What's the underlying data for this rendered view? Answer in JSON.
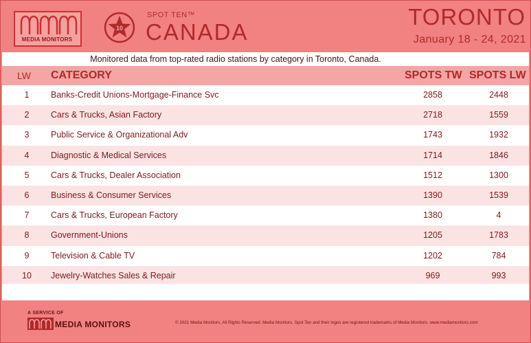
{
  "brand": {
    "logo_caption": "MEDIA MONITORS",
    "badge_number": "10",
    "product_line": "SPOT TEN™",
    "region": "CANADA"
  },
  "market": {
    "city": "TORONTO",
    "date_range": "January 18 - 24, 2021"
  },
  "subtitle": "Monitored data from top-rated radio stations by category in Toronto, Canada.",
  "table": {
    "headers": {
      "lw": "LW",
      "category": "CATEGORY",
      "spots_tw": "SPOTS TW",
      "spots_lw": "SPOTS LW"
    },
    "rows": [
      {
        "lw": "1",
        "category": "Banks-Credit Unions-Mortgage-Finance Svc",
        "spots_tw": "2858",
        "spots_lw": "2448"
      },
      {
        "lw": "2",
        "category": "Cars & Trucks, Asian Factory",
        "spots_tw": "2718",
        "spots_lw": "1559"
      },
      {
        "lw": "3",
        "category": "Public Service & Organizational Adv",
        "spots_tw": "1743",
        "spots_lw": "1932"
      },
      {
        "lw": "4",
        "category": "Diagnostic & Medical Services",
        "spots_tw": "1714",
        "spots_lw": "1846"
      },
      {
        "lw": "5",
        "category": "Cars & Trucks, Dealer Association",
        "spots_tw": "1512",
        "spots_lw": "1300"
      },
      {
        "lw": "6",
        "category": "Business & Consumer Services",
        "spots_tw": "1390",
        "spots_lw": "1539"
      },
      {
        "lw": "7",
        "category": "Cars & Trucks, European Factory",
        "spots_tw": "1380",
        "spots_lw": "4"
      },
      {
        "lw": "8",
        "category": "Government-Unions",
        "spots_tw": "1205",
        "spots_lw": "1783"
      },
      {
        "lw": "9",
        "category": "Television & Cable TV",
        "spots_tw": "1202",
        "spots_lw": "784"
      },
      {
        "lw": "10",
        "category": "Jewelry-Watches Sales & Repair",
        "spots_tw": "969",
        "spots_lw": "993"
      }
    ]
  },
  "footer": {
    "service_label": "A SERVICE OF",
    "brand": "MEDIA MONITORS",
    "copyright": "© 2021 Media Monitors. All Rights Reserved. Media Monitors, Spot Ten and their logos are registered trademarks of Media Monitors. www.mediamonitors.com"
  },
  "colors": {
    "background": "#f28181",
    "accent": "#b02a2a",
    "row_alt": "#fbe3e3"
  }
}
